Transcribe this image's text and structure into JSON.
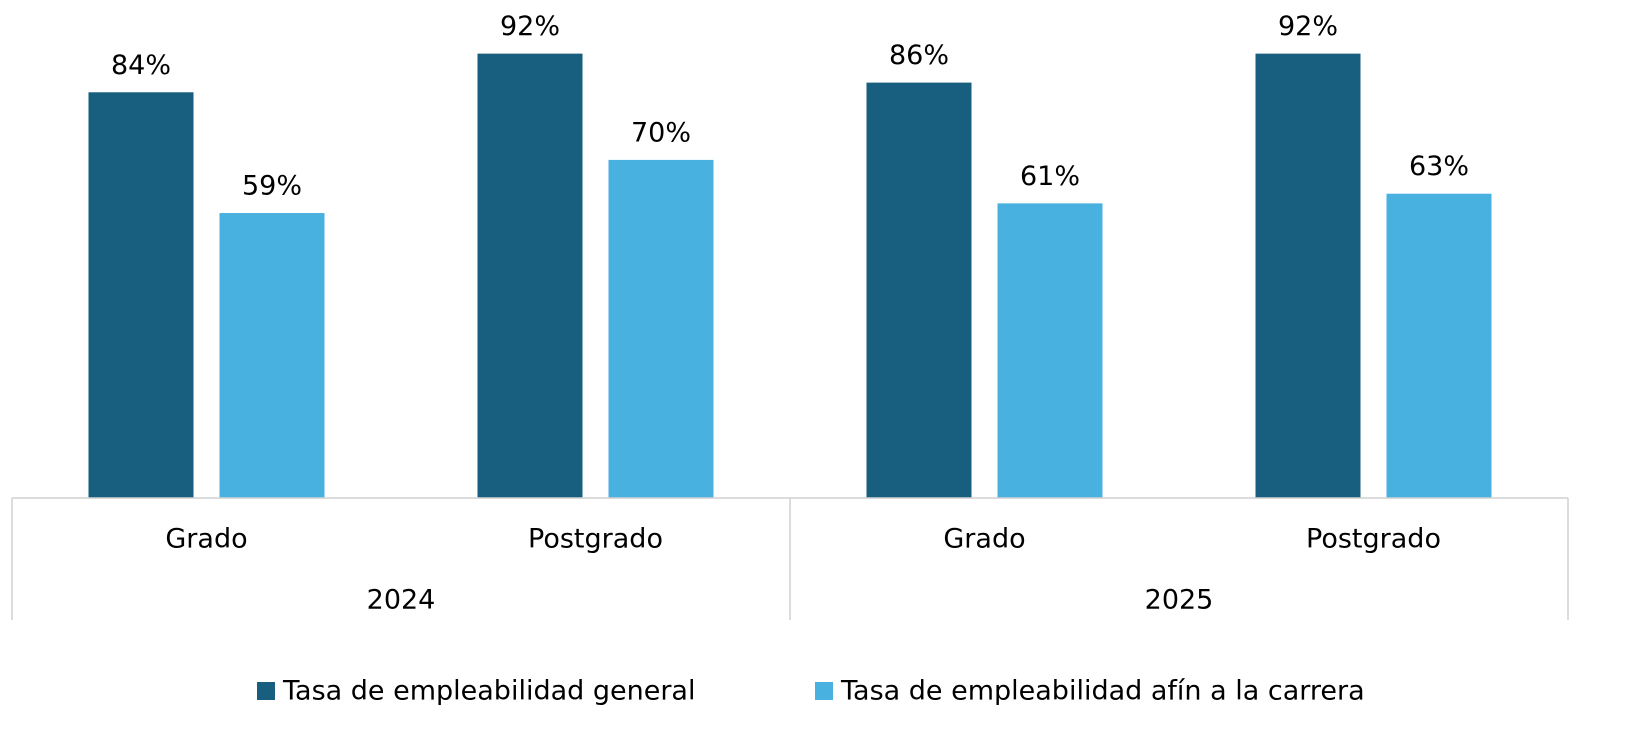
{
  "chart_data": {
    "type": "bar",
    "groups": [
      "2024",
      "2025"
    ],
    "categories": [
      "Grado",
      "Postgrado",
      "Grado",
      "Postgrado"
    ],
    "series": [
      {
        "name": "Tasa de empleabilidad general",
        "color": "#175e7f",
        "values": [
          84,
          92,
          86,
          92
        ],
        "value_labels": [
          "84%",
          "92%",
          "86%",
          "92%"
        ]
      },
      {
        "name": "Tasa de empleabilidad afín a la carrera",
        "color": "#48b1e0",
        "values": [
          59,
          70,
          61,
          63
        ],
        "value_labels": [
          "59%",
          "70%",
          "61%",
          "63%"
        ]
      }
    ]
  }
}
